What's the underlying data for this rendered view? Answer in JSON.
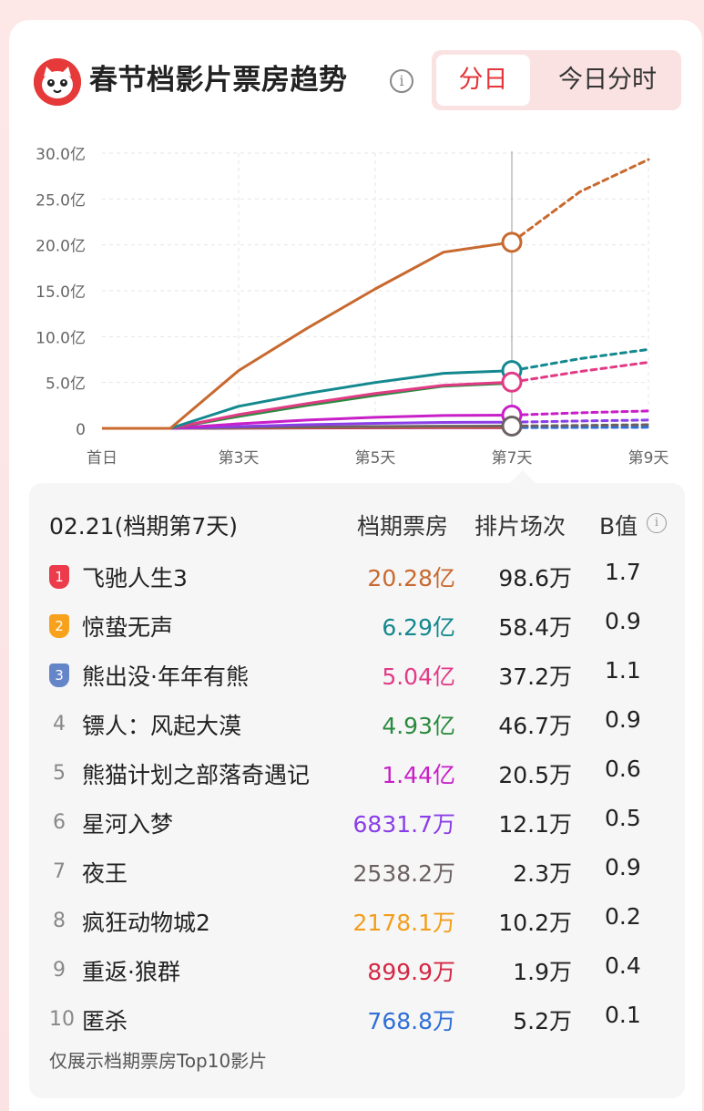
{
  "header": {
    "title": "春节档影片票房趋势",
    "info_icon": "info-icon",
    "logo_icon": "maoyan-cat-logo-icon",
    "tabs": [
      {
        "label": "分日",
        "active": true
      },
      {
        "label": "今日分时",
        "active": false
      }
    ]
  },
  "chart_data": {
    "type": "line",
    "x_ticks": [
      "首日",
      "第3天",
      "第5天",
      "第7天",
      "第9天"
    ],
    "x_days": [
      1,
      2,
      3,
      4,
      5,
      6,
      7,
      8,
      9
    ],
    "y_ticks": [
      "30.0亿",
      "25.0亿",
      "20.0亿",
      "15.0亿",
      "10.0亿",
      "5.0亿",
      "0"
    ],
    "ylim": [
      0,
      30
    ],
    "y_unit": "亿",
    "current_day": 7,
    "grid": true,
    "series": [
      {
        "name": "飞驰人生3",
        "color": "#c8692f",
        "values": [
          0,
          0,
          6.3,
          10.9,
          15.2,
          19.2,
          20.28
        ],
        "forecast": [
          20.28,
          25.8,
          29.3
        ]
      },
      {
        "name": "惊蛰无声",
        "color": "#13888f",
        "values": [
          0,
          0,
          2.4,
          3.8,
          5.0,
          6.0,
          6.29
        ],
        "forecast": [
          6.29,
          7.6,
          8.6
        ]
      },
      {
        "name": "熊出没·年年有熊",
        "color": "#e23b86",
        "values": [
          0,
          0,
          1.5,
          2.7,
          3.8,
          4.7,
          5.04
        ],
        "forecast": [
          5.04,
          6.2,
          7.2
        ]
      },
      {
        "name": "镖人：风起大漠",
        "color": "#2b8a3e",
        "values": [
          0,
          0,
          1.3,
          2.5,
          3.6,
          4.6,
          4.93
        ],
        "forecast": []
      },
      {
        "name": "熊猫计划之部落奇遇记",
        "color": "#c81fc8",
        "values": [
          0,
          0,
          0.5,
          0.9,
          1.2,
          1.4,
          1.44
        ],
        "forecast": [
          1.44,
          1.7,
          1.9
        ]
      },
      {
        "name": "星河入梦",
        "color": "#8a3ee8",
        "values": [
          0,
          0,
          0.2,
          0.4,
          0.55,
          0.65,
          0.68
        ],
        "forecast": [
          0.68,
          0.8,
          0.9
        ]
      },
      {
        "name": "夜王",
        "color": "#6d6262",
        "values": [
          0,
          0,
          0.1,
          0.15,
          0.2,
          0.24,
          0.25
        ],
        "forecast": [
          0.25,
          0.32,
          0.4
        ]
      },
      {
        "name": "疯狂动物城2",
        "color": "#f29e1c",
        "values": [
          0,
          0,
          0.08,
          0.13,
          0.17,
          0.2,
          0.22
        ],
        "forecast": []
      },
      {
        "name": "重返·狼群",
        "color": "#d42845",
        "values": [
          0,
          0,
          0.03,
          0.05,
          0.07,
          0.085,
          0.09
        ],
        "forecast": []
      },
      {
        "name": "匿杀",
        "color": "#2f6fd6",
        "values": [
          0,
          0,
          0.02,
          0.04,
          0.06,
          0.07,
          0.077
        ],
        "forecast": [
          0.077,
          0.1,
          0.12
        ]
      }
    ]
  },
  "table": {
    "date_label": "02.21(档期第7天)",
    "col_box": "档期票房",
    "col_shows": "排片场次",
    "col_b": "B值",
    "b_info_icon": "info-icon",
    "rows": [
      {
        "rank": "1",
        "name": "飞驰人生3",
        "box": "20.28亿",
        "box_color": "#c8692f",
        "shows": "98.6万",
        "b": "1.7"
      },
      {
        "rank": "2",
        "name": "惊蛰无声",
        "box": "6.29亿",
        "box_color": "#13888f",
        "shows": "58.4万",
        "b": "0.9"
      },
      {
        "rank": "3",
        "name": "熊出没·年年有熊",
        "box": "5.04亿",
        "box_color": "#e23b86",
        "shows": "37.2万",
        "b": "1.1"
      },
      {
        "rank": "4",
        "name": "镖人：风起大漠",
        "box": "4.93亿",
        "box_color": "#2b8a3e",
        "shows": "46.7万",
        "b": "0.9"
      },
      {
        "rank": "5",
        "name": "熊猫计划之部落奇遇记",
        "box": "1.44亿",
        "box_color": "#c81fc8",
        "shows": "20.5万",
        "b": "0.6"
      },
      {
        "rank": "6",
        "name": "星河入梦",
        "box": "6831.7万",
        "box_color": "#8a3ee8",
        "shows": "12.1万",
        "b": "0.5"
      },
      {
        "rank": "7",
        "name": "夜王",
        "box": "2538.2万",
        "box_color": "#6d6262",
        "shows": "2.3万",
        "b": "0.9"
      },
      {
        "rank": "8",
        "name": "疯狂动物城2",
        "box": "2178.1万",
        "box_color": "#f29e1c",
        "shows": "10.2万",
        "b": "0.2"
      },
      {
        "rank": "9",
        "name": "重返·狼群",
        "box": "899.9万",
        "box_color": "#d42845",
        "shows": "1.9万",
        "b": "0.4"
      },
      {
        "rank": "10",
        "name": "匿杀",
        "box": "768.8万",
        "box_color": "#2f6fd6",
        "shows": "5.2万",
        "b": "0.1"
      }
    ],
    "footnote": "仅展示档期票房Top10影片"
  }
}
